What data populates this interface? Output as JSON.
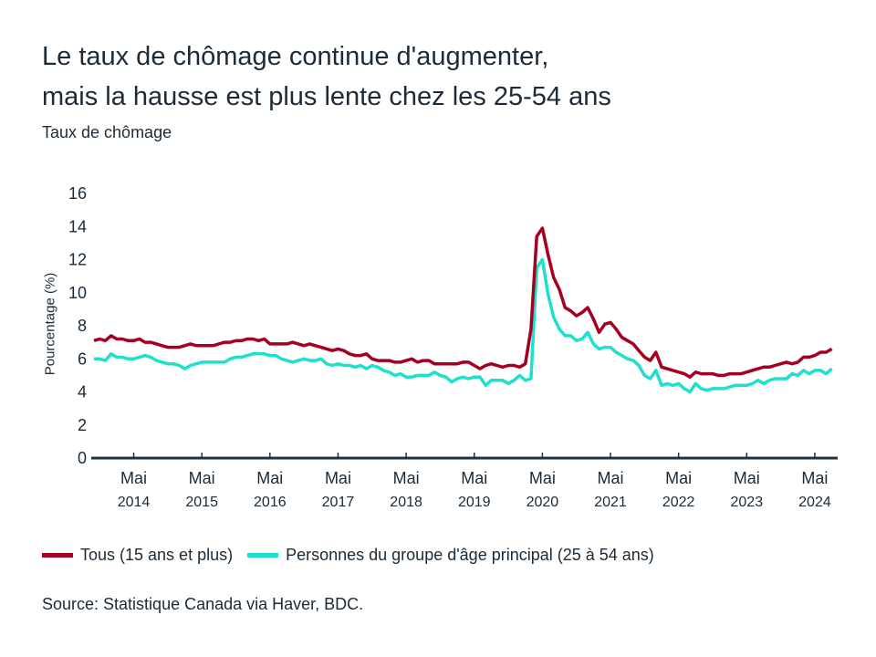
{
  "title_line1": "Le taux de chômage continue d'augmenter,",
  "title_line2": "mais la hausse est plus lente chez les 25-54 ans",
  "subtitle": "Taux de chômage",
  "source": "Source: Statistique Canada via Haver, BDC.",
  "chart_data": {
    "type": "line",
    "ylabel": "Pourcentage (%)",
    "ylim": [
      0,
      16
    ],
    "yticks": [
      "0",
      "2",
      "4",
      "6",
      "8",
      "10",
      "12",
      "14",
      "16"
    ],
    "x_start": "2013-10",
    "x_end": "2024-08",
    "frequency": "monthly",
    "xticks": [
      {
        "month": "Mai",
        "year": "2014"
      },
      {
        "month": "Mai",
        "year": "2015"
      },
      {
        "month": "Mai",
        "year": "2016"
      },
      {
        "month": "Mai",
        "year": "2017"
      },
      {
        "month": "Mai",
        "year": "2018"
      },
      {
        "month": "Mai",
        "year": "2019"
      },
      {
        "month": "Mai",
        "year": "2020"
      },
      {
        "month": "Mai",
        "year": "2021"
      },
      {
        "month": "Mai",
        "year": "2022"
      },
      {
        "month": "Mai",
        "year": "2023"
      },
      {
        "month": "Mai",
        "year": "2024"
      }
    ],
    "grid": false,
    "legend_position": "bottom",
    "series": [
      {
        "name": "Tous (15 ans et plus)",
        "color": "#a50021",
        "values": [
          7.1,
          7.2,
          7.1,
          7.4,
          7.2,
          7.2,
          7.1,
          7.1,
          7.2,
          7.0,
          7.0,
          6.9,
          6.8,
          6.7,
          6.7,
          6.7,
          6.8,
          6.9,
          6.8,
          6.8,
          6.8,
          6.8,
          6.9,
          7.0,
          7.0,
          7.1,
          7.1,
          7.2,
          7.2,
          7.1,
          7.2,
          6.9,
          6.9,
          6.9,
          6.9,
          7.0,
          6.9,
          6.8,
          6.9,
          6.8,
          6.7,
          6.6,
          6.5,
          6.6,
          6.5,
          6.3,
          6.2,
          6.2,
          6.3,
          6.0,
          5.9,
          5.9,
          5.9,
          5.8,
          5.8,
          5.9,
          6.0,
          5.8,
          5.9,
          5.9,
          5.7,
          5.7,
          5.7,
          5.7,
          5.7,
          5.8,
          5.8,
          5.6,
          5.4,
          5.6,
          5.7,
          5.6,
          5.5,
          5.6,
          5.6,
          5.5,
          5.7,
          7.8,
          13.4,
          13.9,
          12.3,
          10.9,
          10.2,
          9.1,
          8.9,
          8.6,
          8.8,
          9.1,
          8.4,
          7.6,
          8.1,
          8.2,
          7.8,
          7.3,
          7.1,
          6.9,
          6.5,
          6.1,
          5.9,
          6.4,
          5.5,
          5.4,
          5.3,
          5.2,
          5.1,
          4.9,
          5.2,
          5.1,
          5.1,
          5.1,
          5.0,
          5.0,
          5.1,
          5.1,
          5.1,
          5.2,
          5.3,
          5.4,
          5.5,
          5.5,
          5.6,
          5.7,
          5.8,
          5.7,
          5.8,
          6.1,
          6.1,
          6.2,
          6.4,
          6.4,
          6.6
        ]
      },
      {
        "name": "Personnes du groupe d'âge principal (25 à 54 ans)",
        "color": "#1ee0cc",
        "values": [
          6.0,
          6.0,
          5.9,
          6.3,
          6.1,
          6.1,
          6.0,
          6.0,
          6.1,
          6.2,
          6.1,
          5.9,
          5.8,
          5.7,
          5.7,
          5.6,
          5.4,
          5.6,
          5.7,
          5.8,
          5.8,
          5.8,
          5.8,
          5.8,
          6.0,
          6.1,
          6.1,
          6.2,
          6.3,
          6.3,
          6.3,
          6.2,
          6.2,
          6.0,
          5.9,
          5.8,
          5.9,
          6.0,
          5.9,
          5.9,
          6.0,
          5.7,
          5.6,
          5.7,
          5.6,
          5.6,
          5.5,
          5.6,
          5.4,
          5.6,
          5.5,
          5.3,
          5.2,
          5.0,
          5.1,
          4.9,
          4.9,
          5.0,
          5.0,
          5.0,
          5.2,
          5.0,
          4.9,
          4.6,
          4.8,
          4.9,
          4.8,
          4.9,
          4.9,
          4.4,
          4.7,
          4.7,
          4.7,
          4.5,
          4.7,
          5.0,
          4.7,
          4.8,
          11.5,
          12.0,
          9.9,
          8.5,
          7.8,
          7.4,
          7.4,
          7.1,
          7.2,
          7.6,
          6.9,
          6.6,
          6.7,
          6.7,
          6.4,
          6.2,
          6.0,
          5.9,
          5.6,
          5.0,
          4.8,
          5.3,
          4.4,
          4.5,
          4.4,
          4.5,
          4.2,
          4.0,
          4.5,
          4.2,
          4.1,
          4.2,
          4.2,
          4.2,
          4.3,
          4.4,
          4.4,
          4.4,
          4.5,
          4.7,
          4.5,
          4.7,
          4.8,
          4.8,
          4.8,
          5.1,
          5.0,
          5.3,
          5.1,
          5.3,
          5.3,
          5.1,
          5.4
        ]
      }
    ]
  }
}
